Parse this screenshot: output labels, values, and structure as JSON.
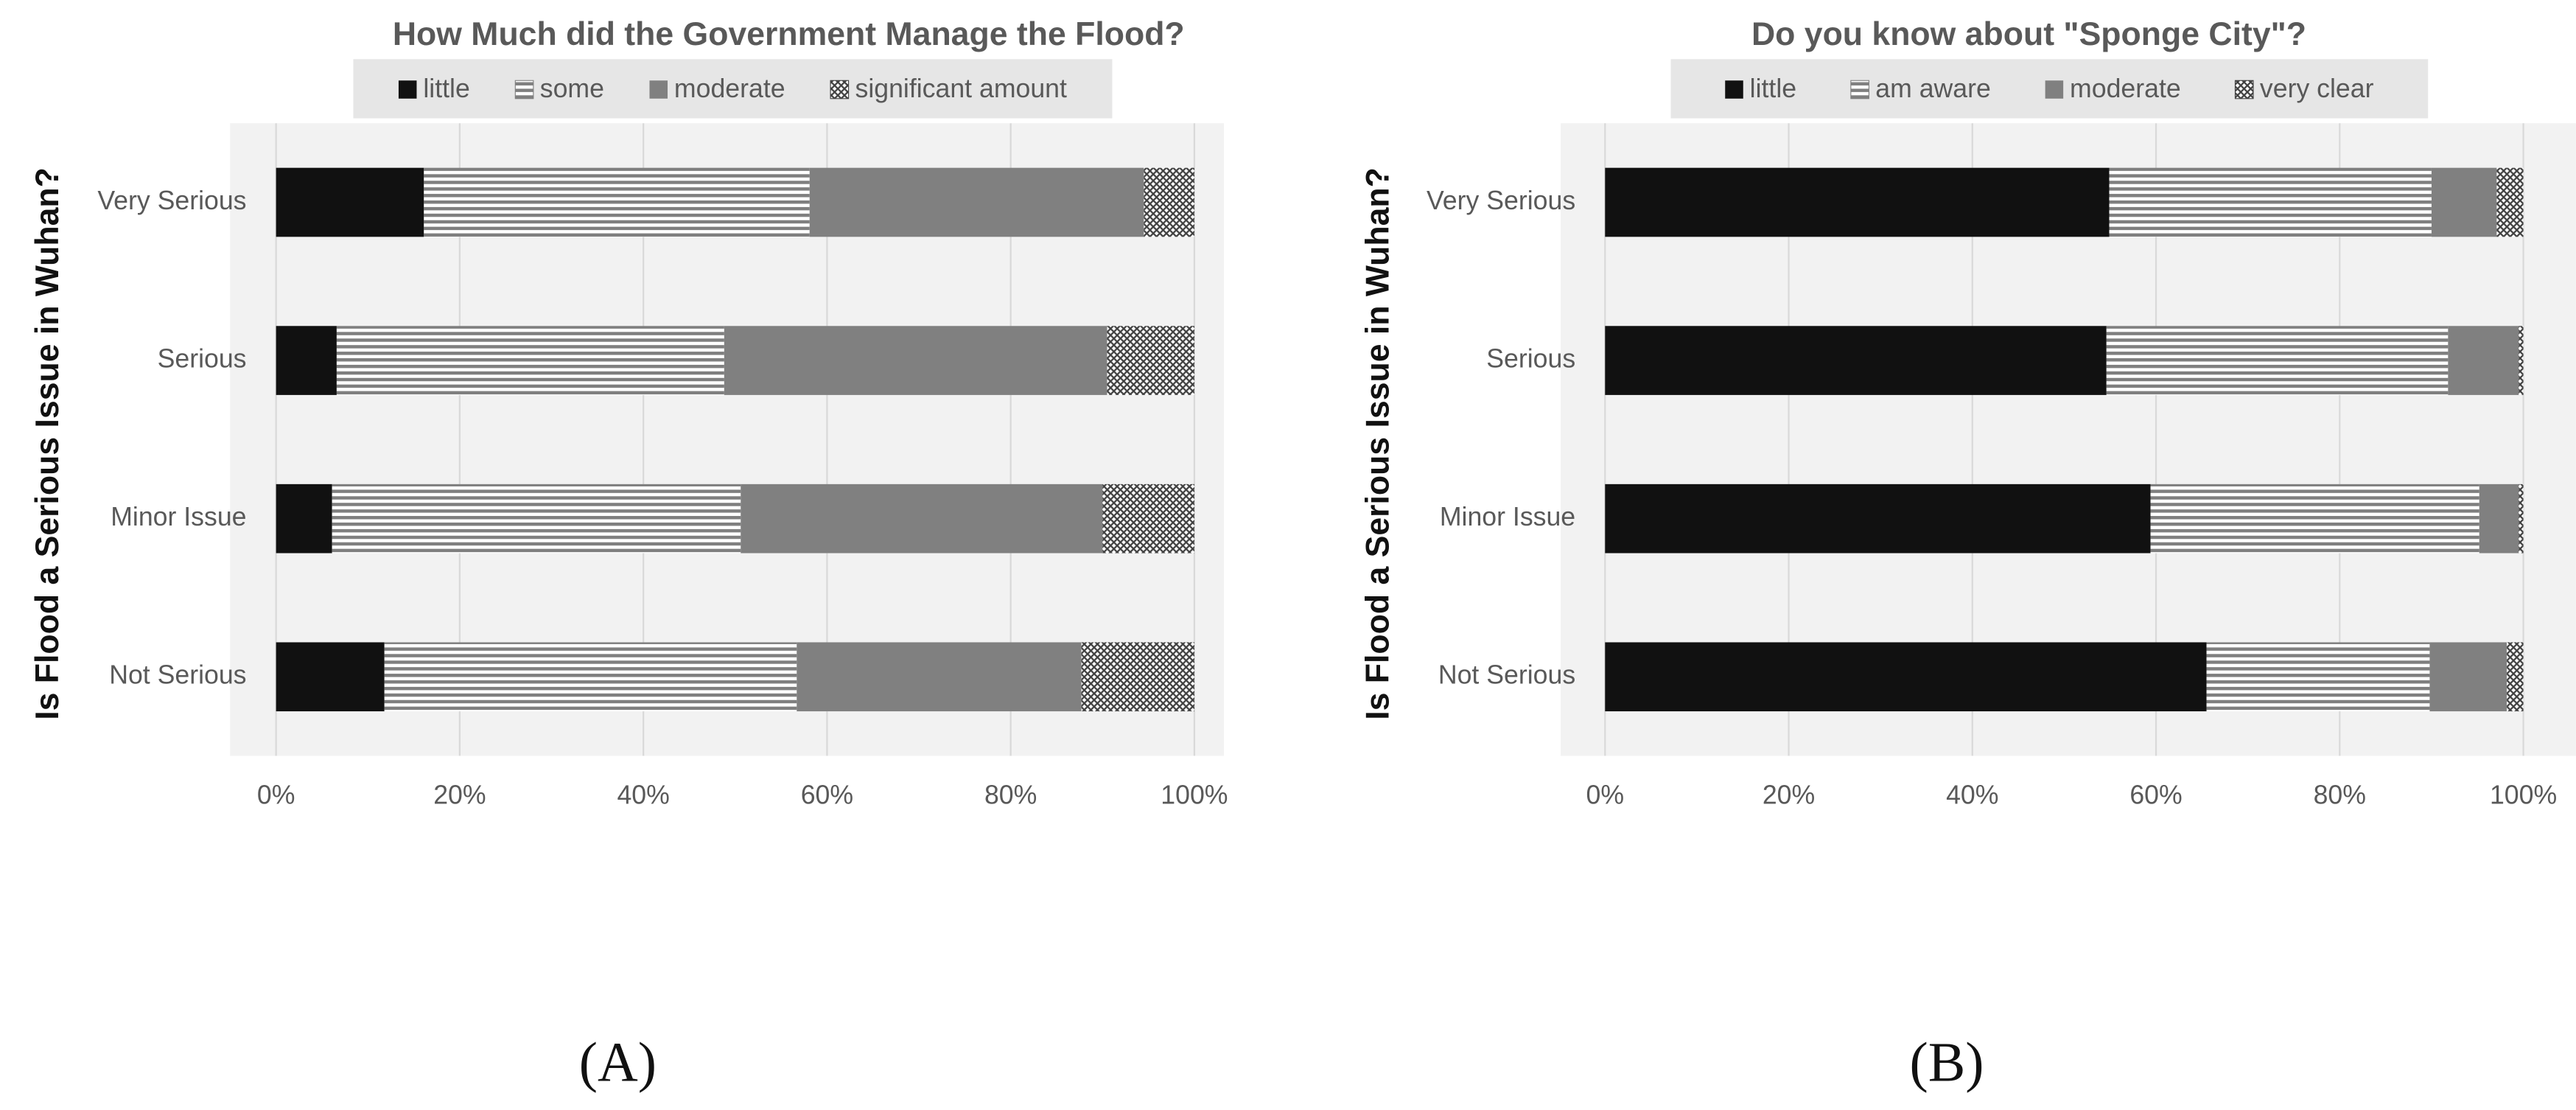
{
  "chart_data": [
    {
      "type": "bar",
      "orientation": "horizontal",
      "stacked": true,
      "title": "How Much did the Government Manage the Flood?",
      "y_label": "Is Flood a Serious Issue in Wuhan?",
      "panel_label": "(A)",
      "categories": [
        "Very Serious",
        "Serious",
        "Minor Issue",
        "Not Serious"
      ],
      "series": [
        {
          "name": "little",
          "color": "#111111",
          "pattern": "solid",
          "values": [
            16.1,
            6.6,
            6.1,
            11.8
          ]
        },
        {
          "name": "some",
          "color": "#7f7f7f",
          "pattern": "stripes",
          "values": [
            42.0,
            42.2,
            44.5,
            44.9
          ]
        },
        {
          "name": "moderate",
          "color": "#808080",
          "pattern": "solid",
          "values": [
            36.4,
            41.7,
            39.4,
            31.0
          ]
        },
        {
          "name": "significant amount",
          "color": "#404040",
          "pattern": "hatch",
          "values": [
            5.5,
            9.5,
            10.0,
            12.3
          ]
        }
      ],
      "xlim": [
        0,
        100
      ],
      "xticks": [
        {
          "value": 0,
          "label": "0%"
        },
        {
          "value": 20,
          "label": "20%"
        },
        {
          "value": 40,
          "label": "40%"
        },
        {
          "value": 60,
          "label": "60%"
        },
        {
          "value": 80,
          "label": "80%"
        },
        {
          "value": 100,
          "label": "100%"
        }
      ],
      "grid": true,
      "legend": "top"
    },
    {
      "type": "bar",
      "orientation": "horizontal",
      "stacked": true,
      "title": "Do you know about \"Sponge City\"?",
      "y_label": "Is Flood a Serious Issue in Wuhan?",
      "panel_label": "(B)",
      "categories": [
        "Very Serious",
        "Serious",
        "Minor Issue",
        "Not Serious"
      ],
      "series": [
        {
          "name": "little",
          "color": "#111111",
          "pattern": "solid",
          "values": [
            54.9,
            54.6,
            59.4,
            65.5
          ]
        },
        {
          "name": "am aware",
          "color": "#7f7f7f",
          "pattern": "stripes",
          "values": [
            35.1,
            37.2,
            35.8,
            24.3
          ]
        },
        {
          "name": "moderate",
          "color": "#808080",
          "pattern": "solid",
          "values": [
            7.1,
            7.7,
            4.3,
            8.4
          ]
        },
        {
          "name": "very clear",
          "color": "#404040",
          "pattern": "hatch",
          "values": [
            2.9,
            0.5,
            0.5,
            1.8
          ]
        }
      ],
      "xlim": [
        0,
        100
      ],
      "xticks": [
        {
          "value": 0,
          "label": "0%"
        },
        {
          "value": 20,
          "label": "20%"
        },
        {
          "value": 40,
          "label": "40%"
        },
        {
          "value": 60,
          "label": "60%"
        },
        {
          "value": 80,
          "label": "80%"
        },
        {
          "value": 100,
          "label": "100%"
        }
      ],
      "grid": true,
      "legend": "top"
    }
  ]
}
